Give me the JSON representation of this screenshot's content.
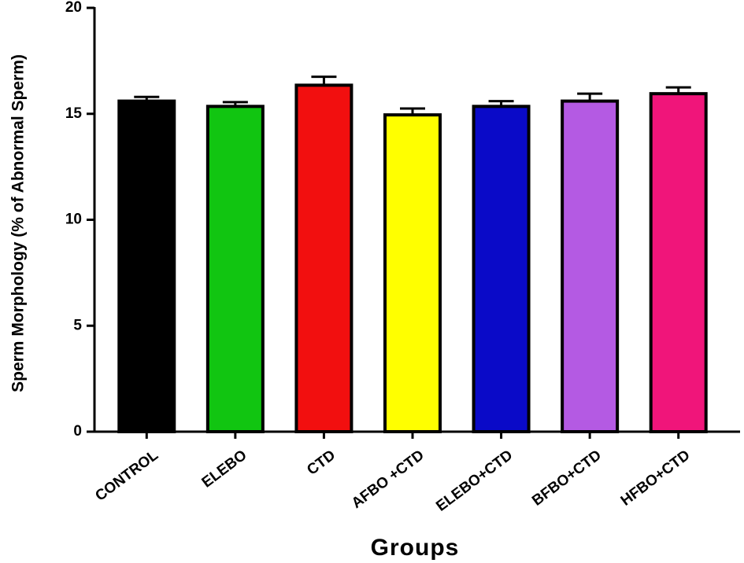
{
  "chart_data": {
    "type": "bar",
    "title": "",
    "xlabel": "Groups",
    "ylabel": "Sperm Morphology  (% of Abnormal Sperm)",
    "ylim": [
      0,
      20
    ],
    "yticks": [
      0,
      5,
      10,
      15,
      20
    ],
    "grid": false,
    "categories": [
      "CONTROL",
      "ELEBO",
      "CTD",
      "AFBO +CTD",
      "ELEBO+CTD",
      "BFBO+CTD",
      "HFBO+CTD"
    ],
    "values": [
      15.6,
      15.35,
      16.35,
      14.95,
      15.35,
      15.6,
      15.95
    ],
    "errors": [
      0.2,
      0.2,
      0.4,
      0.3,
      0.25,
      0.35,
      0.3
    ],
    "colors": [
      "#000000",
      "#11c511",
      "#f20f0f",
      "#ffff00",
      "#0a0ac8",
      "#b45ae3",
      "#f0157a"
    ]
  }
}
